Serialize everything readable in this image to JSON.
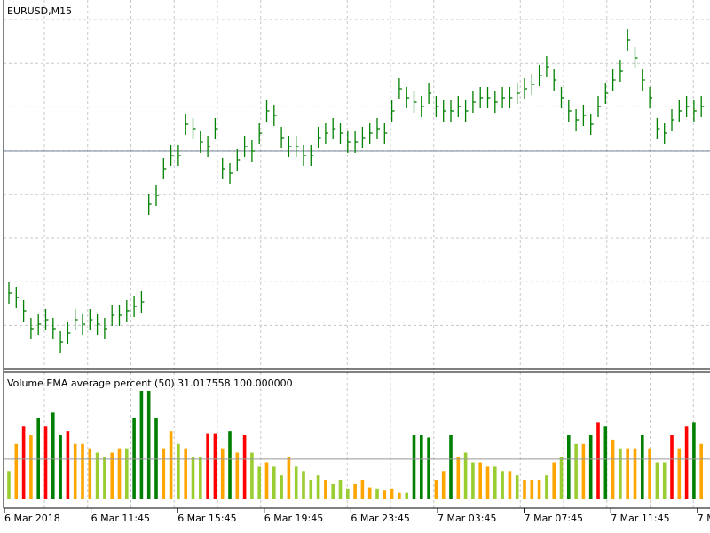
{
  "chart_data": [
    {
      "type": "ohlc",
      "title": "EURUSD,M15",
      "color": "#008000",
      "ylim": [
        0,
        415
      ],
      "hline": 245,
      "hline_color": "#778899",
      "high": [
        97,
        92,
        77,
        57,
        62,
        67,
        57,
        42,
        52,
        67,
        62,
        67,
        62,
        57,
        72,
        72,
        77,
        82,
        87,
        197,
        207,
        237,
        252,
        252,
        287,
        282,
        267,
        262,
        282,
        237,
        232,
        247,
        262,
        257,
        277,
        302,
        297,
        272,
        262,
        262,
        252,
        252,
        272,
        277,
        282,
        277,
        267,
        267,
        272,
        277,
        282,
        277,
        302,
        327,
        317,
        312,
        307,
        322,
        307,
        302,
        302,
        307,
        302,
        312,
        317,
        317,
        312,
        317,
        317,
        322,
        327,
        332,
        342,
        352,
        337,
        317,
        302,
        292,
        297,
        287,
        307,
        322,
        337,
        347,
        382,
        362,
        337,
        317,
        282,
        277,
        292,
        302,
        307,
        302,
        307
      ],
      "low": [
        73,
        68,
        53,
        33,
        38,
        43,
        33,
        18,
        28,
        43,
        38,
        43,
        38,
        33,
        48,
        48,
        53,
        58,
        63,
        173,
        183,
        213,
        228,
        228,
        263,
        258,
        243,
        238,
        258,
        213,
        208,
        223,
        238,
        233,
        253,
        278,
        273,
        248,
        238,
        238,
        228,
        228,
        248,
        253,
        258,
        253,
        243,
        243,
        248,
        253,
        258,
        253,
        278,
        303,
        293,
        288,
        283,
        298,
        283,
        278,
        278,
        283,
        278,
        288,
        293,
        293,
        288,
        293,
        293,
        298,
        303,
        308,
        318,
        328,
        313,
        293,
        278,
        268,
        273,
        263,
        283,
        298,
        313,
        323,
        358,
        338,
        313,
        293,
        258,
        253,
        268,
        278,
        283,
        278,
        283
      ],
      "close": [
        85,
        80,
        65,
        45,
        50,
        55,
        45,
        30,
        40,
        55,
        50,
        55,
        50,
        45,
        60,
        60,
        65,
        70,
        75,
        185,
        195,
        225,
        240,
        240,
        275,
        270,
        255,
        250,
        270,
        225,
        220,
        235,
        250,
        245,
        265,
        290,
        285,
        260,
        250,
        250,
        240,
        240,
        260,
        265,
        270,
        265,
        255,
        255,
        260,
        265,
        270,
        265,
        290,
        315,
        305,
        300,
        295,
        310,
        295,
        290,
        290,
        295,
        290,
        300,
        305,
        305,
        300,
        305,
        305,
        310,
        315,
        320,
        330,
        340,
        325,
        305,
        290,
        280,
        285,
        275,
        295,
        310,
        325,
        335,
        370,
        350,
        325,
        305,
        270,
        265,
        280,
        290,
        295,
        290,
        295
      ]
    },
    {
      "type": "bar",
      "title": "Volume EMA average percent (50) 31.017558 100.000000",
      "ylim": [
        0,
        100
      ],
      "hline": 37,
      "hline_color": "#999999",
      "values": [
        26,
        51,
        67,
        59,
        75,
        67,
        80,
        59,
        63,
        51,
        51,
        47,
        43,
        39,
        43,
        47,
        47,
        75,
        100,
        100,
        75,
        47,
        63,
        51,
        47,
        39,
        39,
        61,
        61,
        47,
        63,
        43,
        59,
        43,
        30,
        34,
        30,
        22,
        39,
        30,
        26,
        18,
        22,
        18,
        14,
        18,
        10,
        14,
        18,
        11,
        10,
        8,
        10,
        6,
        6,
        59,
        59,
        57,
        18,
        26,
        59,
        39,
        43,
        34,
        34,
        30,
        30,
        26,
        26,
        22,
        18,
        18,
        18,
        22,
        34,
        39,
        59,
        51,
        51,
        59,
        71,
        67,
        55,
        47,
        47,
        47,
        59,
        47,
        34,
        34,
        59,
        47,
        67,
        71,
        51
      ],
      "colors": [
        "#9acd32",
        "#ffa500",
        "#ff0000",
        "#ffa500",
        "#008000",
        "#ff0000",
        "#008000",
        "#008000",
        "#ff0000",
        "#ffa500",
        "#ffa500",
        "#ffa500",
        "#9acd32",
        "#9acd32",
        "#ffa500",
        "#ffa500",
        "#9acd32",
        "#008000",
        "#008000",
        "#008000",
        "#008000",
        "#ffa500",
        "#ffa500",
        "#9acd32",
        "#ffa500",
        "#9acd32",
        "#9acd32",
        "#ff0000",
        "#ff0000",
        "#ffa500",
        "#008000",
        "#ffa500",
        "#ff0000",
        "#9acd32",
        "#9acd32",
        "#ffa500",
        "#9acd32",
        "#9acd32",
        "#ffa500",
        "#9acd32",
        "#9acd32",
        "#9acd32",
        "#9acd32",
        "#ffa500",
        "#9acd32",
        "#9acd32",
        "#9acd32",
        "#ffa500",
        "#ffa500",
        "#ffa500",
        "#9acd32",
        "#ffa500",
        "#ffa500",
        "#ffa500",
        "#9acd32",
        "#008000",
        "#008000",
        "#008000",
        "#ffa500",
        "#ffa500",
        "#008000",
        "#ffa500",
        "#9acd32",
        "#9acd32",
        "#ffa500",
        "#ffa500",
        "#9acd32",
        "#9acd32",
        "#ffa500",
        "#9acd32",
        "#ffa500",
        "#ffa500",
        "#ffa500",
        "#9acd32",
        "#ffa500",
        "#9acd32",
        "#008000",
        "#9acd32",
        "#ffa500",
        "#008000",
        "#ff0000",
        "#008000",
        "#ffa500",
        "#9acd32",
        "#ffa500",
        "#ffa500",
        "#008000",
        "#ffa500",
        "#9acd32",
        "#9acd32",
        "#ff0000",
        "#ffa500",
        "#ff0000",
        "#008000",
        "#ffa500"
      ],
      "x_labels": [
        "6 Mar 2018",
        "6 Mar 11:45",
        "6 Mar 15:45",
        "6 Mar 19:45",
        "6 Mar 23:45",
        "7 Mar 03:45",
        "7 Mar 07:45",
        "7 Mar 11:45",
        "7 M"
      ]
    }
  ]
}
